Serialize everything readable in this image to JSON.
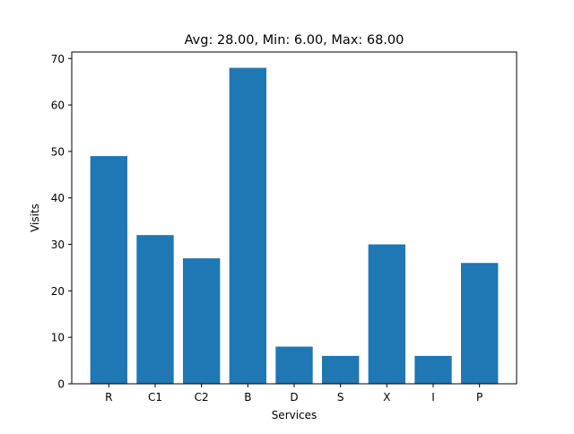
{
  "chart_data": {
    "type": "bar",
    "title": "Avg: 28.00, Min: 6.00, Max: 68.00",
    "xlabel": "Services",
    "ylabel": "Visits",
    "categories": [
      "R",
      "C1",
      "C2",
      "B",
      "D",
      "S",
      "X",
      "I",
      "P"
    ],
    "values": [
      49,
      32,
      27,
      68,
      8,
      6,
      30,
      6,
      26
    ],
    "ylim": [
      0,
      71.4
    ],
    "yticks": [
      0,
      10,
      20,
      30,
      40,
      50,
      60,
      70
    ],
    "grid": false,
    "bar_color": "#1f77b4"
  }
}
